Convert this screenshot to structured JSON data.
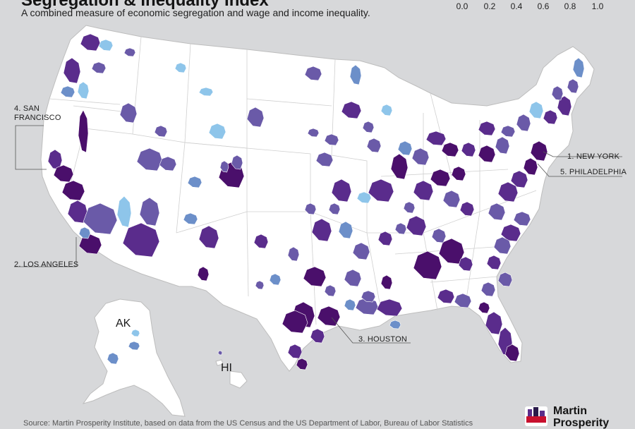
{
  "header": {
    "title": "Segregation & Inequality Index",
    "subtitle": "A combined measure of economic segregation and wage and income inequality."
  },
  "legend": {
    "ticks": [
      "0.0",
      "0.2",
      "0.4",
      "0.6",
      "0.8",
      "1.0"
    ],
    "colors": [
      "#8ec5ea",
      "#6c8fc9",
      "#6a5aa8",
      "#5a2c8c",
      "#4a0f6b"
    ]
  },
  "callouts": {
    "new_york": "1. NEW YORK",
    "los_angeles": "2. LOS ANGELES",
    "houston": "3. HOUSTON",
    "san_francisco_line1": "4. SAN",
    "san_francisco_line2": "FRANCISCO",
    "philadelphia": "5. PHILADELPHIA"
  },
  "state_labels": {
    "alaska": "AK",
    "hawaii": "HI"
  },
  "footer": {
    "source": "Source: Martin Prosperity Institute, based on data from the US Census and the US Department of Labor, Bureau of Labor Statistics",
    "logo_line1": "Martin",
    "logo_line2": "Prosperity"
  },
  "colors": {
    "background": "#d7d8da",
    "land": "#ffffff",
    "state_border": "#c9c9c9",
    "callout_line": "#555555"
  }
}
